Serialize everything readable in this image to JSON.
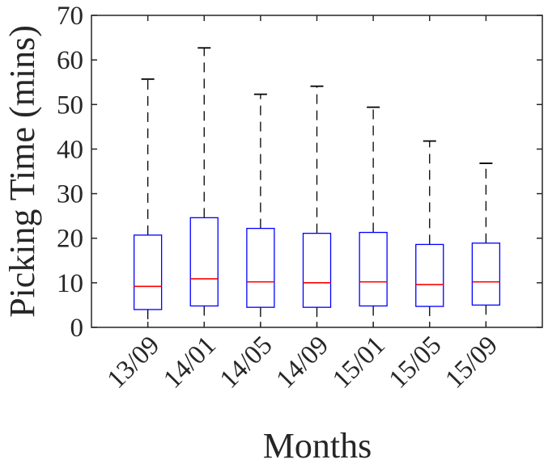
{
  "chart_data": {
    "type": "box",
    "xlabel": "Months",
    "ylabel": "Picking Time (mins)",
    "ylim": [
      0,
      70
    ],
    "yticks": [
      0,
      10,
      20,
      30,
      40,
      50,
      60,
      70
    ],
    "categories": [
      "13/09",
      "14/01",
      "14/05",
      "14/09",
      "15/01",
      "15/05",
      "15/09"
    ],
    "boxes": [
      {
        "min": 0,
        "q1": 4.0,
        "median": 9.2,
        "q3": 20.7,
        "max": 55.7
      },
      {
        "min": 0,
        "q1": 4.8,
        "median": 10.9,
        "q3": 24.6,
        "max": 62.7
      },
      {
        "min": 0,
        "q1": 4.5,
        "median": 10.2,
        "q3": 22.2,
        "max": 52.3
      },
      {
        "min": 0,
        "q1": 4.5,
        "median": 10.0,
        "q3": 21.1,
        "max": 54.1
      },
      {
        "min": 0,
        "q1": 4.8,
        "median": 10.2,
        "q3": 21.3,
        "max": 49.4
      },
      {
        "min": 0,
        "q1": 4.7,
        "median": 9.6,
        "q3": 18.6,
        "max": 41.8
      },
      {
        "min": 0,
        "q1": 5.0,
        "median": 10.2,
        "q3": 18.9,
        "max": 36.8
      }
    ],
    "colors": {
      "box": "#0000ff",
      "median": "#ff0000",
      "whisker": "#000000",
      "axis": "#262626"
    },
    "grid": false,
    "legend": "none"
  }
}
